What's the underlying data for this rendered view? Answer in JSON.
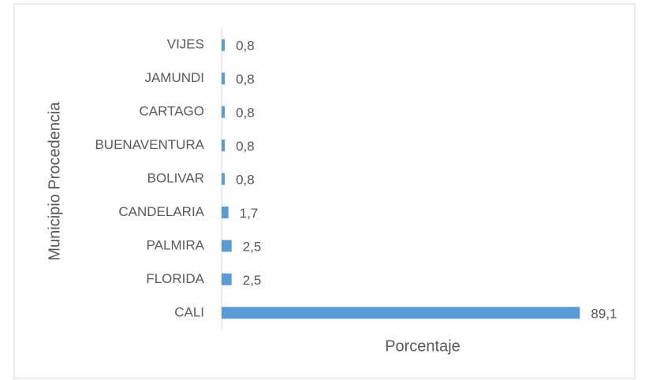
{
  "chart_data": {
    "type": "hbar",
    "categories": [
      "VIJES",
      "JAMUNDI",
      "CARTAGO",
      "BUENAVENTURA",
      "BOLIVAR",
      "CANDELARIA",
      "PALMIRA",
      "FLORIDA",
      "CALI"
    ],
    "values": [
      0.8,
      0.8,
      0.8,
      0.8,
      0.8,
      1.7,
      2.5,
      2.5,
      89.1
    ],
    "value_labels": [
      "0,8",
      "0,8",
      "0,8",
      "0,8",
      "0,8",
      "1,7",
      "2,5",
      "2,5",
      "89,1"
    ],
    "color": "#5b9bd5",
    "xlim": [
      0,
      100
    ],
    "x_label": "Porcentaje",
    "y_label": "Municipio Procedencia"
  }
}
